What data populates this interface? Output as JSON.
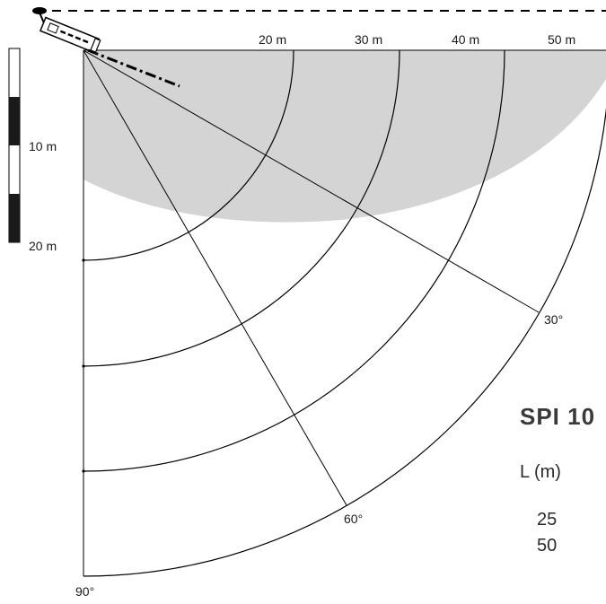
{
  "distance_labels": [
    "20 m",
    "30 m",
    "40 m",
    "50 m"
  ],
  "scale_bar": {
    "labels": [
      "10 m",
      "20 m"
    ]
  },
  "angle_labels": {
    "a30": "30°",
    "a60": "60°",
    "a90": "90°"
  },
  "product": {
    "model": "SPI 10"
  },
  "table": {
    "header": "L (m)",
    "rows": [
      "25",
      "50"
    ]
  },
  "colors": {
    "coverage": "#d4d4d4",
    "lines": "#000000"
  }
}
